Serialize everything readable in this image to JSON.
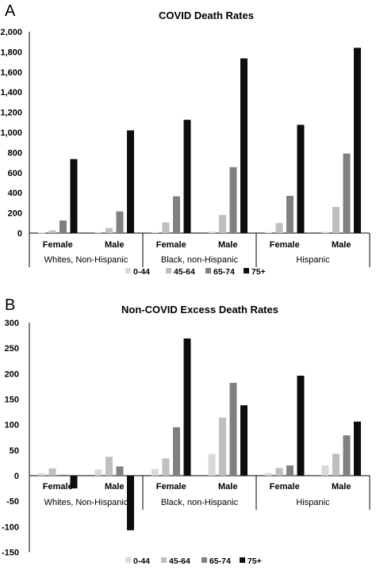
{
  "chart_data": [
    {
      "panel": "A",
      "type": "bar",
      "title": "COVID Death Rates",
      "ylim": [
        0,
        2000
      ],
      "yticks": [
        "2,000",
        "1,800",
        "1,600",
        "1,400",
        "1,200",
        "1,000",
        "800",
        "600",
        "400",
        "200",
        "0"
      ],
      "groups": [
        "Whites, Non-Hispanic",
        "Black, non-Hispanic",
        "Hispanic"
      ],
      "categories": [
        "Female",
        "Male",
        "Female",
        "Male",
        "Female",
        "Male"
      ],
      "series": [
        {
          "name": "0-44",
          "color": "#d9d9d9",
          "values": [
            5,
            10,
            10,
            15,
            10,
            15
          ]
        },
        {
          "name": "45-64",
          "color": "#bfbfbf",
          "values": [
            25,
            50,
            105,
            180,
            100,
            260
          ]
        },
        {
          "name": "65-74",
          "color": "#808080",
          "values": [
            125,
            215,
            365,
            655,
            370,
            790
          ]
        },
        {
          "name": "75+",
          "color": "#0d0d0d",
          "values": [
            735,
            1020,
            1125,
            1735,
            1075,
            1840
          ]
        }
      ],
      "legend_position": "bottom"
    },
    {
      "panel": "B",
      "type": "bar",
      "title": "Non-COVID Excess Death Rates",
      "ylim": [
        -150,
        300
      ],
      "yticks": [
        "300",
        "250",
        "200",
        "150",
        "100",
        "50",
        "0",
        "-50",
        "-100",
        "-150"
      ],
      "groups": [
        "Whites, Non-Hispanic",
        "Black, non-Hispanic",
        "Hispanic"
      ],
      "categories": [
        "Female",
        "Male",
        "Female",
        "Male",
        "Female",
        "Male"
      ],
      "series": [
        {
          "name": "0-44",
          "color": "#d9d9d9",
          "values": [
            5,
            12,
            13,
            43,
            5,
            20
          ]
        },
        {
          "name": "45-64",
          "color": "#bfbfbf",
          "values": [
            14,
            37,
            34,
            114,
            15,
            43
          ]
        },
        {
          "name": "65-74",
          "color": "#808080",
          "values": [
            2,
            18,
            95,
            182,
            20,
            79
          ]
        },
        {
          "name": "75+",
          "color": "#0d0d0d",
          "values": [
            -25,
            -107,
            269,
            138,
            196,
            106
          ]
        }
      ],
      "legend_position": "bottom"
    }
  ]
}
